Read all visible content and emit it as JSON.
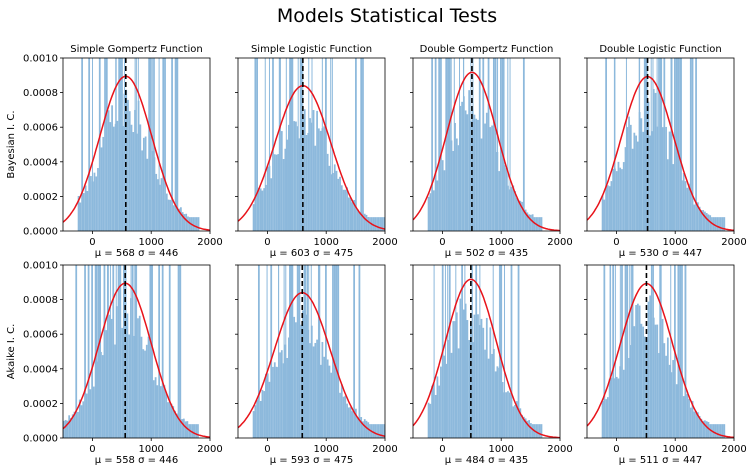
{
  "title": "Models Statistical Tests",
  "chart_data": {
    "type": "histogram",
    "title": "Models Statistical Tests",
    "columns": [
      "Simple Gompertz Function",
      "Simple Logistic Function",
      "Double Gompertz Function",
      "Double Logistic Function"
    ],
    "rows": [
      "Bayesian I. C.",
      "Akaike I. C."
    ],
    "xlim": [
      -500,
      2000
    ],
    "ylim": [
      0,
      0.001
    ],
    "xticks": [
      "0",
      "1000",
      "2000"
    ],
    "yticks": [
      "0.0000",
      "0.0002",
      "0.0004",
      "0.0006",
      "0.0008",
      "0.0010"
    ],
    "colors": {
      "hist": "#8db9dc",
      "fit": "#e8131a",
      "mean_line": "#000000"
    },
    "panels": [
      {
        "row": 0,
        "col": 0,
        "mu": 568,
        "sigma": 446,
        "caption": "μ = 568    σ = 446",
        "data_min": -250,
        "data_max": 1800
      },
      {
        "row": 0,
        "col": 1,
        "mu": 603,
        "sigma": 475,
        "caption": "μ = 603    σ = 475",
        "data_min": -250,
        "data_max": 2000
      },
      {
        "row": 0,
        "col": 2,
        "mu": 502,
        "sigma": 435,
        "caption": "μ = 502    σ = 435",
        "data_min": -250,
        "data_max": 1700
      },
      {
        "row": 0,
        "col": 3,
        "mu": 530,
        "sigma": 447,
        "caption": "μ = 530    σ = 447",
        "data_min": -250,
        "data_max": 1850
      },
      {
        "row": 1,
        "col": 0,
        "mu": 558,
        "sigma": 446,
        "caption": "μ = 558    σ = 446",
        "data_min": -500,
        "data_max": 1800
      },
      {
        "row": 1,
        "col": 1,
        "mu": 593,
        "sigma": 475,
        "caption": "μ = 593    σ = 475",
        "data_min": -250,
        "data_max": 2000
      },
      {
        "row": 1,
        "col": 2,
        "mu": 484,
        "sigma": 435,
        "caption": "μ = 484    σ = 435",
        "data_min": -250,
        "data_max": 1700
      },
      {
        "row": 1,
        "col": 3,
        "mu": 511,
        "sigma": 447,
        "caption": "μ = 511    σ = 447",
        "data_min": -250,
        "data_max": 1850
      }
    ]
  }
}
